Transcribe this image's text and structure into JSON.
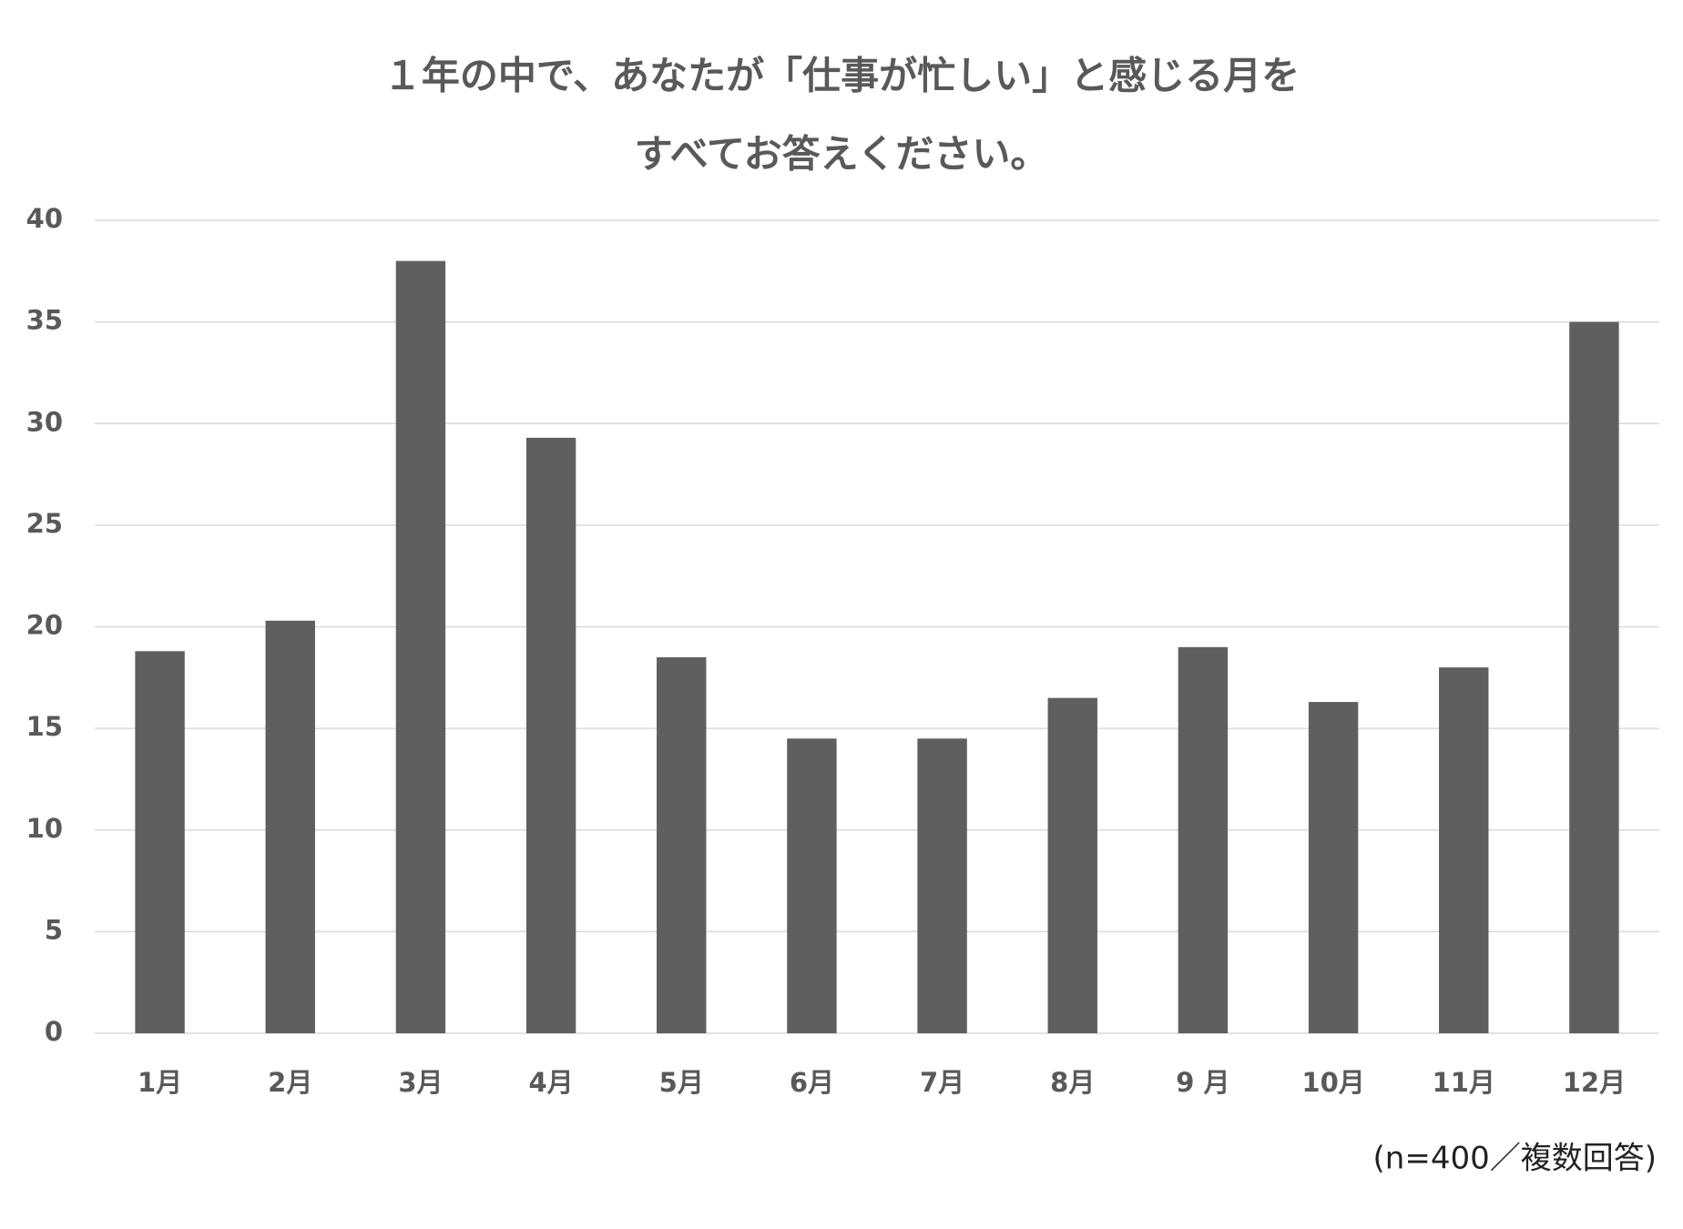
{
  "chart_data": {
    "type": "bar",
    "title": [
      "１年の中で、あなたが「仕事が忙しい」と感じる月を",
      "すべてお答えください。"
    ],
    "categories": [
      "1月",
      "2月",
      "3月",
      "4月",
      "5月",
      "6月",
      "7月",
      "8月",
      "9 月",
      "10月",
      "11月",
      "12月"
    ],
    "values": [
      18.8,
      20.3,
      38.0,
      29.3,
      18.5,
      14.5,
      14.5,
      16.5,
      19.0,
      16.3,
      18.0,
      35.0
    ],
    "color": "#5f5f5f",
    "ylim": [
      0,
      40
    ],
    "yticks": [
      0,
      5,
      10,
      15,
      20,
      25,
      30,
      35,
      40
    ],
    "grid": true,
    "note": "(n=400／複数回答)"
  }
}
